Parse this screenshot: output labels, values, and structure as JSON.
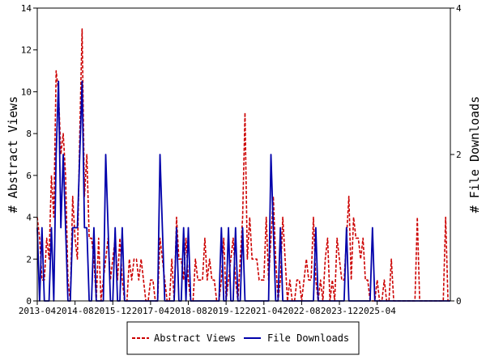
{
  "chart_data": {
    "type": "line",
    "x_labels": [
      "2013-04",
      "2014-08",
      "2015-12",
      "2017-04",
      "2018-08",
      "2019-12",
      "2021-04",
      "2022-08",
      "2023-12",
      "2025-04"
    ],
    "x_start": "2013-04",
    "left_axis": {
      "label": "# Abstract Views",
      "ticks": [
        0,
        2,
        4,
        6,
        8,
        10,
        12,
        14
      ],
      "ylim": [
        0,
        14
      ]
    },
    "right_axis": {
      "label": "# File Downloads",
      "ticks": [
        0,
        2,
        4
      ],
      "ylim": [
        0,
        4
      ]
    },
    "grid": false,
    "legend_position": "bottom",
    "series": [
      {
        "name": "Abstract Views",
        "axis": "left",
        "color": "#cc0000",
        "style": "dashed",
        "values": [
          4,
          3,
          1,
          1,
          3,
          2,
          6,
          4,
          11,
          10,
          7,
          8,
          6,
          1,
          0,
          5,
          3,
          2,
          8,
          13,
          5,
          7,
          3,
          3,
          2,
          0,
          3,
          0,
          1,
          2,
          3,
          1,
          2,
          3,
          1,
          3,
          1,
          0,
          0,
          2,
          1,
          2,
          2,
          1,
          2,
          1,
          0,
          0,
          1,
          1,
          0,
          0,
          3,
          2,
          1,
          0,
          0,
          2,
          0,
          4,
          2,
          2,
          1,
          3,
          1,
          0,
          0,
          2,
          1,
          1,
          1,
          3,
          1,
          2,
          1,
          1,
          0,
          0,
          1,
          3,
          0,
          1,
          2,
          3,
          1,
          0,
          2,
          4,
          9,
          2,
          4,
          2,
          2,
          2,
          1,
          1,
          1,
          4,
          1,
          3,
          5,
          2,
          0,
          1,
          4,
          2,
          0,
          1,
          0,
          0,
          1,
          1,
          0,
          1,
          2,
          1,
          1,
          4,
          1,
          0,
          1,
          0,
          2,
          3,
          0,
          1,
          0,
          3,
          2,
          1,
          1,
          3,
          5,
          1,
          4,
          3,
          3,
          2,
          3,
          1,
          1,
          0,
          0,
          0,
          1,
          0,
          0,
          1,
          0,
          0,
          2,
          0,
          0,
          0,
          0,
          0,
          0,
          0,
          0,
          0,
          0,
          4,
          0,
          0,
          0,
          0,
          0,
          0,
          0,
          0,
          0,
          0,
          0,
          4,
          0,
          0
        ]
      },
      {
        "name": "File Downloads",
        "axis": "right",
        "color": "#0000aa",
        "style": "solid",
        "values": [
          1,
          0,
          1,
          0,
          0,
          0,
          1,
          0,
          2,
          3,
          1,
          2,
          1,
          0,
          0,
          1,
          1,
          1,
          2,
          3,
          1,
          1,
          0,
          0,
          1,
          0,
          0,
          0,
          0,
          2,
          1,
          0,
          0,
          1,
          0,
          0,
          1,
          0,
          0,
          0,
          0,
          0,
          0,
          0,
          0,
          0,
          0,
          0,
          0,
          0,
          0,
          0,
          2,
          1,
          0,
          0,
          0,
          0,
          0,
          1,
          0,
          0,
          1,
          0,
          1,
          0,
          0,
          0,
          0,
          0,
          0,
          0,
          0,
          0,
          0,
          0,
          0,
          0,
          1,
          0,
          0,
          1,
          0,
          0,
          1,
          0,
          0,
          1,
          0,
          0,
          0,
          0,
          0,
          0,
          0,
          0,
          0,
          0,
          0,
          2,
          1,
          0,
          0,
          1,
          0,
          0,
          0,
          0,
          0,
          0,
          0,
          0,
          0,
          0,
          0,
          0,
          0,
          0,
          1,
          0,
          0,
          0,
          0,
          0,
          0,
          0,
          0,
          0,
          0,
          0,
          0,
          1,
          0,
          0,
          0,
          0,
          0,
          0,
          0,
          0,
          0,
          0,
          1,
          0,
          0,
          0,
          0,
          0,
          0,
          0,
          0,
          0,
          0,
          0,
          0,
          0,
          0,
          0,
          0,
          0,
          0,
          0,
          0,
          0,
          0,
          0,
          0,
          0,
          0,
          0,
          0,
          0,
          0,
          0,
          0,
          0
        ]
      }
    ]
  }
}
